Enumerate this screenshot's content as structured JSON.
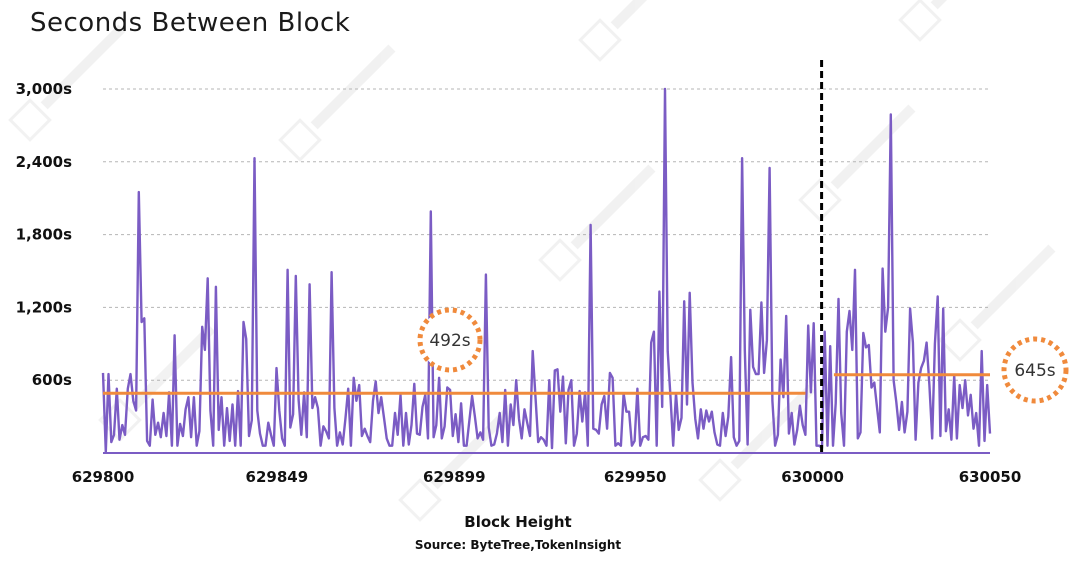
{
  "chart_data": {
    "type": "line",
    "title": "Seconds Between Block",
    "xlabel": "Block Height",
    "source": "Source: ByteTree,TokenInsight",
    "x_range": [
      629800,
      630050
    ],
    "x_ticks": [
      {
        "value": 629800,
        "label": "629800"
      },
      {
        "value": 629849,
        "label": "629849"
      },
      {
        "value": 629899,
        "label": "629899"
      },
      {
        "value": 629950,
        "label": "629950"
      },
      {
        "value": 630000,
        "label": "630000"
      },
      {
        "value": 630050,
        "label": "630050"
      }
    ],
    "ylim": [
      0,
      3000
    ],
    "y_ticks": [
      {
        "value": 600,
        "label": "600s"
      },
      {
        "value": 1200,
        "label": "1,200s"
      },
      {
        "value": 1800,
        "label": "1,800s"
      },
      {
        "value": 2400,
        "label": "2,400s"
      },
      {
        "value": 3000,
        "label": "3,000s"
      }
    ],
    "grid": "horizontal dashed",
    "halving_marker_block": 630000,
    "averages": [
      {
        "label": "492s",
        "value": 492,
        "from": 629800,
        "to": 629998
      },
      {
        "label": "645s",
        "value": 645,
        "from": 630006,
        "to": 630050
      }
    ],
    "series": [
      {
        "color": "#7b5cc4",
        "values": [
          660,
          10,
          650,
          90,
          150,
          530,
          110,
          230,
          150,
          530,
          650,
          430,
          350,
          2150,
          1080,
          1110,
          100,
          60,
          440,
          150,
          250,
          130,
          330,
          140,
          500,
          60,
          970,
          60,
          240,
          140,
          360,
          460,
          130,
          460,
          60,
          180,
          1040,
          850,
          1440,
          350,
          60,
          1370,
          190,
          460,
          60,
          370,
          100,
          400,
          60,
          510,
          60,
          1080,
          940,
          140,
          270,
          2430,
          350,
          160,
          60,
          60,
          250,
          150,
          60,
          700,
          350,
          120,
          60,
          1510,
          210,
          320,
          1460,
          440,
          150,
          500,
          130,
          1390,
          370,
          460,
          370,
          60,
          220,
          180,
          120,
          1490,
          370,
          60,
          170,
          70,
          280,
          530,
          60,
          620,
          430,
          560,
          140,
          200,
          140,
          90,
          430,
          590,
          330,
          460,
          290,
          120,
          60,
          60,
          330,
          150,
          480,
          60,
          330,
          70,
          230,
          570,
          160,
          150,
          380,
          480,
          120,
          1990,
          130,
          230,
          620,
          120,
          220,
          540,
          520,
          140,
          320,
          90,
          410,
          60,
          60,
          270,
          470,
          300,
          120,
          170,
          110,
          1470,
          210,
          60,
          70,
          160,
          330,
          90,
          520,
          60,
          400,
          230,
          600,
          280,
          120,
          360,
          250,
          140,
          840,
          460,
          90,
          130,
          110,
          60,
          600,
          40,
          680,
          690,
          340,
          630,
          80,
          520,
          600,
          60,
          160,
          510,
          260,
          500,
          60,
          1880,
          200,
          190,
          160,
          400,
          470,
          200,
          660,
          620,
          60,
          80,
          60,
          490,
          340,
          340,
          60,
          100,
          530,
          60,
          130,
          140,
          110,
          910,
          1000,
          60,
          1330,
          380,
          3000,
          840,
          460,
          60,
          490,
          190,
          290,
          1250,
          400,
          1320,
          580,
          280,
          120,
          360,
          200,
          350,
          260,
          340,
          170,
          70,
          60,
          330,
          140,
          300,
          790,
          130,
          60,
          100,
          2430,
          850,
          70,
          1180,
          710,
          650,
          650,
          1240,
          660,
          930,
          2350,
          430,
          60,
          150,
          770,
          460,
          1130,
          160,
          330,
          70,
          190,
          390,
          230,
          150,
          1050,
          500,
          1070,
          60,
          60,
          40,
          1000,
          60,
          880,
          60,
          410,
          1270,
          330,
          60,
          1000,
          1170,
          850,
          1510,
          120,
          170,
          990,
          870,
          890,
          540,
          580,
          370,
          170,
          1520,
          1000,
          1200,
          2790,
          600,
          420,
          190,
          420,
          170,
          340,
          1190,
          910,
          110,
          580,
          700,
          760,
          910,
          560,
          120,
          900,
          1290,
          140,
          1190,
          180,
          360,
          110,
          640,
          120,
          560,
          370,
          600,
          310,
          480,
          200,
          330,
          60,
          840,
          100,
          560,
          160
        ]
      }
    ]
  }
}
